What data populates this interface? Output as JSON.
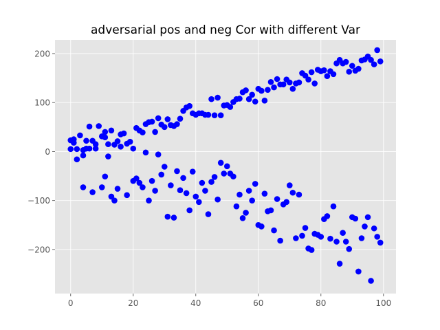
{
  "chart_data": {
    "type": "scatter",
    "title": "adversarial pos and neg Cor with different Var",
    "xlabel": "",
    "ylabel": "",
    "xlim": [
      -5,
      104
    ],
    "ylim": [
      -290,
      228
    ],
    "xticks": [
      0,
      20,
      40,
      60,
      80,
      100
    ],
    "yticks": [
      -200,
      -100,
      0,
      100,
      200
    ],
    "xtick_labels": [
      "0",
      "20",
      "40",
      "60",
      "80",
      "100"
    ],
    "ytick_labels": [
      "−200",
      "−100",
      "0",
      "100",
      "200"
    ],
    "grid": true,
    "style": "ggplot",
    "colors": {
      "plot_background": "#E5E5E5",
      "grid": "#FFFFFF",
      "marker": "#0000FF",
      "tick_text": "#555555",
      "title_text": "#000000"
    },
    "series": [
      {
        "name": "",
        "color": "#0000FF",
        "x": [
          0,
          0,
          1,
          1,
          2,
          2,
          3,
          4,
          4,
          5,
          5,
          6,
          6,
          7,
          8,
          8,
          9,
          10,
          11,
          11,
          12,
          13,
          14,
          15,
          16,
          16,
          17,
          18,
          19,
          20,
          21,
          22,
          23,
          24,
          25,
          26,
          27,
          28,
          29,
          30,
          31,
          32,
          33,
          34,
          35,
          36,
          37,
          38,
          39,
          40,
          41,
          42,
          43,
          44,
          45,
          46,
          47,
          48,
          49,
          50,
          51,
          52,
          53,
          54,
          55,
          56,
          57,
          58,
          59,
          60,
          61,
          62,
          63,
          64,
          65,
          66,
          67,
          68,
          69,
          70,
          71,
          72,
          73,
          74,
          75,
          76,
          77,
          78,
          79,
          80,
          81,
          82,
          83,
          84,
          85,
          86,
          87,
          88,
          89,
          90,
          91,
          92,
          93,
          94,
          95,
          96,
          97,
          98,
          99
        ],
        "y": [
          5,
          23,
          25,
          18,
          5,
          -16,
          33,
          3,
          -8,
          22,
          6,
          51,
          6,
          22,
          15,
          6,
          52,
          31,
          29,
          40,
          15,
          43,
          14,
          21,
          10,
          35,
          37,
          16,
          20,
          6,
          48,
          43,
          39,
          56,
          60,
          61,
          40,
          68,
          55,
          50,
          66,
          54,
          52,
          56,
          67,
          83,
          90,
          93,
          78,
          75,
          78,
          78,
          75,
          75,
          107,
          74,
          110,
          74,
          94,
          95,
          91,
          101,
          107,
          108,
          121,
          125,
          107,
          116,
          102,
          128,
          124,
          104,
          126,
          142,
          131,
          148,
          137,
          137,
          147,
          141,
          128,
          139,
          141,
          160,
          155,
          147,
          162,
          139,
          167,
          164,
          166,
          154,
          164,
          158,
          180,
          187,
          180,
          183,
          163,
          175,
          165,
          169,
          186,
          188,
          194,
          187,
          178,
          207,
          184
        ]
      },
      {
        "name": "",
        "color": "#0000FF",
        "x": [
          4,
          7,
          10,
          11,
          12,
          13,
          14,
          15,
          18,
          20,
          21,
          22,
          23,
          24,
          25,
          26,
          27,
          28,
          29,
          30,
          31,
          32,
          33,
          34,
          35,
          36,
          37,
          38,
          39,
          40,
          41,
          42,
          43,
          44,
          45,
          46,
          47,
          48,
          49,
          50,
          51,
          52,
          53,
          54,
          55,
          56,
          57,
          58,
          59,
          60,
          61,
          62,
          63,
          64,
          65,
          66,
          67,
          68,
          69,
          70,
          71,
          72,
          73,
          74,
          75,
          76,
          77,
          78,
          79,
          80,
          81,
          82,
          83,
          84,
          85,
          86,
          87,
          88,
          89,
          90,
          91,
          92,
          93,
          94,
          95,
          96,
          97,
          98,
          99
        ],
        "y": [
          -73,
          -83,
          -73,
          -51,
          -10,
          -92,
          -100,
          -76,
          -89,
          -60,
          -55,
          -64,
          -73,
          -2,
          -100,
          -60,
          -80,
          -6,
          -47,
          -31,
          -133,
          -69,
          -135,
          -40,
          -79,
          -54,
          -85,
          -120,
          -41,
          -92,
          -103,
          -64,
          -80,
          -128,
          -62,
          -52,
          -98,
          -23,
          -45,
          -30,
          -45,
          -51,
          -112,
          -88,
          -136,
          -125,
          -80,
          -100,
          -66,
          -150,
          -153,
          -86,
          -122,
          -120,
          -161,
          -97,
          -182,
          -108,
          -103,
          -69,
          -84,
          -177,
          -88,
          -172,
          -156,
          -198,
          -201,
          -168,
          -170,
          -174,
          -138,
          -132,
          -178,
          -112,
          -184,
          -229,
          -166,
          -184,
          -199,
          -134,
          -137,
          -245,
          -177,
          -153,
          -134,
          -264,
          -157,
          -174,
          -186
        ]
      }
    ]
  }
}
